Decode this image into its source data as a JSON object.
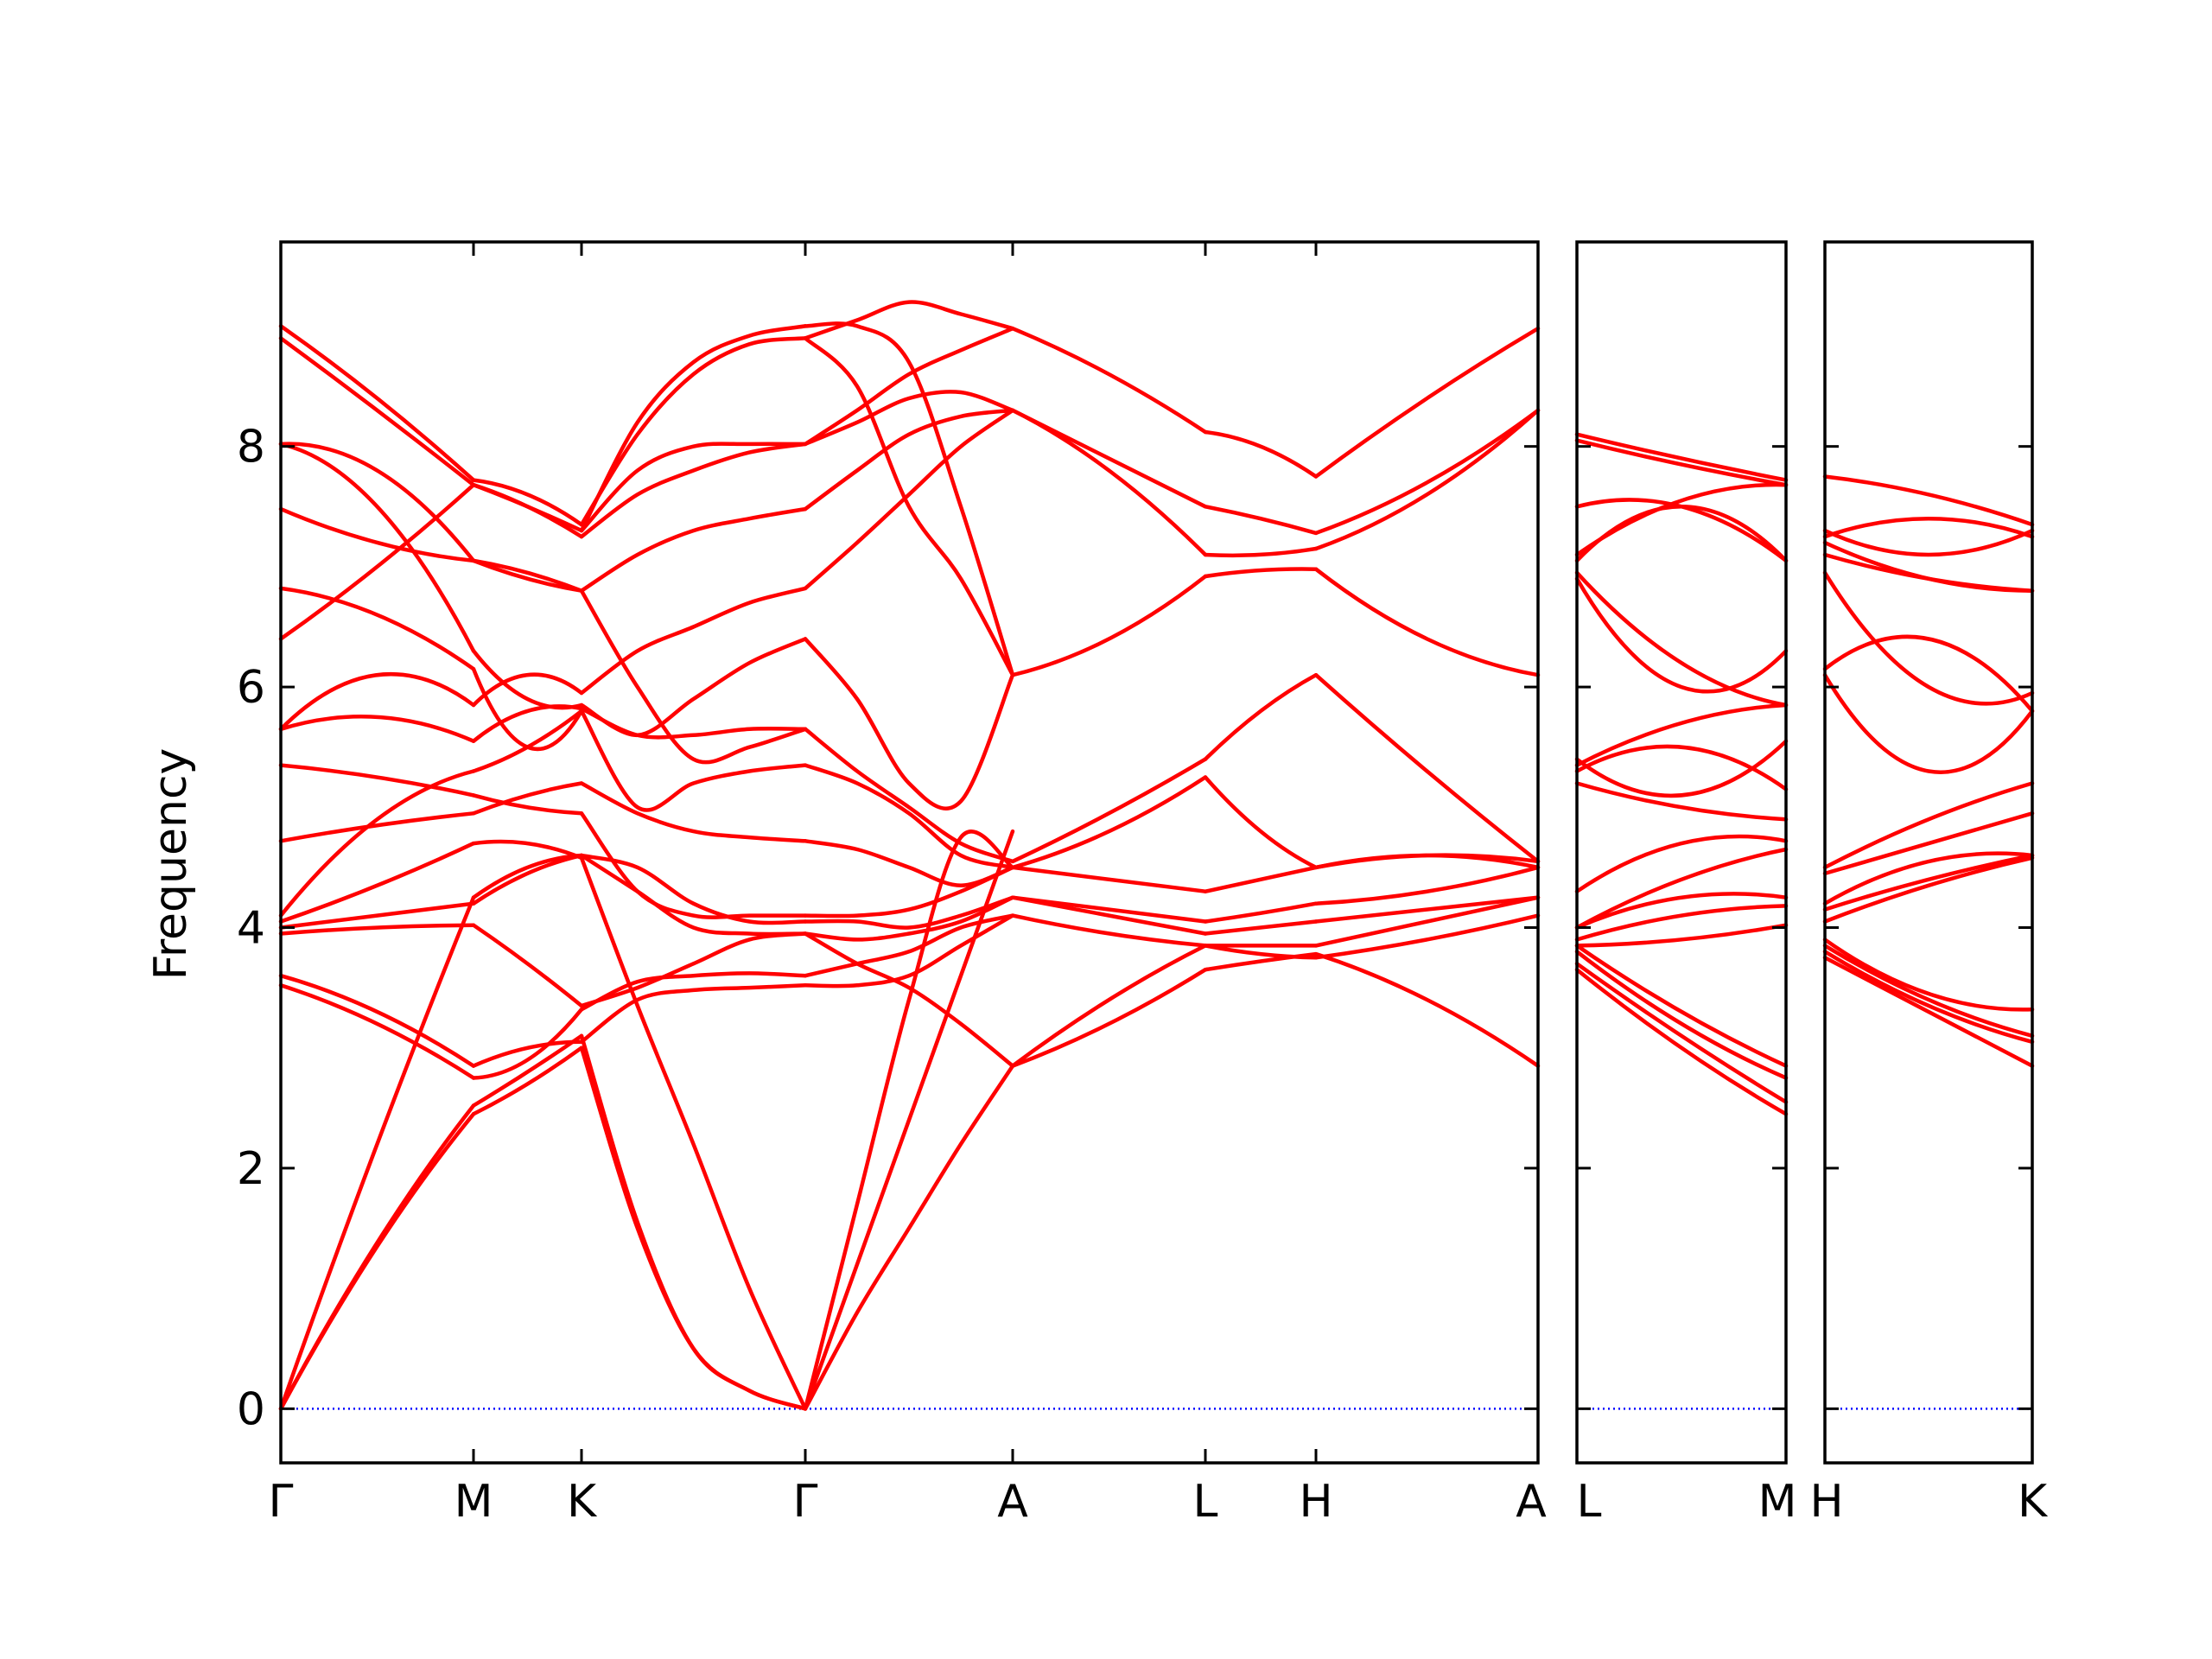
{
  "chart_data": {
    "type": "line",
    "title": "",
    "xlabel": "",
    "ylabel": "Frequency",
    "ylim": [
      -0.45,
      9.7
    ],
    "yticks": [
      0,
      2,
      4,
      6,
      8
    ],
    "grid": false,
    "legend": "none",
    "colors": {
      "bands": "#ff0000",
      "zero_line": "#0000ff",
      "frame": "#000000"
    },
    "panels": [
      {
        "labels": [
          "Γ",
          "M",
          "K",
          "Γ",
          "A",
          "L",
          "H",
          "A"
        ],
        "segments": [
          {
            "from": "Γ",
            "to": "M",
            "x": [
              0,
              0.5,
              1
            ],
            "bands": [
              [
                0,
                1.35,
                2.45
              ],
              [
                0,
                1.38,
                2.52
              ],
              [
                0,
                2.2,
                4.25
              ],
              [
                3.52,
                3.2,
                2.75
              ],
              [
                3.6,
                3.3,
                2.85
              ],
              [
                3.95,
                4.0,
                4.02
              ],
              [
                4.0,
                4.1,
                4.2
              ],
              [
                4.05,
                4.35,
                4.7
              ],
              [
                4.1,
                4.9,
                5.3
              ],
              [
                4.72,
                4.85,
                4.95
              ],
              [
                5.35,
                5.25,
                5.1
              ],
              [
                5.65,
                5.75,
                5.55
              ],
              [
                5.65,
                6.1,
                5.85
              ],
              [
                6.4,
                7.0,
                7.68
              ],
              [
                6.82,
                6.6,
                6.15
              ],
              [
                7.48,
                7.2,
                7.05
              ],
              [
                8.02,
                7.5,
                6.3
              ],
              [
                8.02,
                7.8,
                7.05
              ],
              [
                8.9,
                8.3,
                7.68
              ],
              [
                9.0,
                8.4,
                7.72
              ]
            ]
          },
          {
            "from": "M",
            "to": "K",
            "x": [
              0,
              0.5,
              1
            ],
            "bands": [
              [
                2.45,
                2.7,
                3.0
              ],
              [
                2.52,
                2.8,
                3.1
              ],
              [
                2.75,
                2.9,
                3.32
              ],
              [
                2.85,
                3.0,
                3.05
              ],
              [
                4.02,
                3.7,
                3.35
              ],
              [
                4.2,
                4.45,
                4.6
              ],
              [
                4.25,
                4.5,
                4.6
              ],
              [
                4.7,
                4.7,
                4.58
              ],
              [
                4.95,
                5.1,
                5.2
              ],
              [
                5.1,
                5.0,
                4.95
              ],
              [
                5.3,
                5.5,
                5.8
              ],
              [
                5.55,
                5.8,
                5.82
              ],
              [
                5.85,
                6.1,
                5.95
              ],
              [
                6.15,
                5.5,
                5.8
              ],
              [
                6.3,
                5.9,
                5.85
              ],
              [
                7.05,
                6.9,
                6.8
              ],
              [
                7.05,
                6.95,
                6.8
              ],
              [
                7.68,
                7.5,
                7.25
              ],
              [
                7.68,
                7.5,
                7.3
              ],
              [
                7.72,
                7.6,
                7.35
              ]
            ]
          },
          {
            "from": "K",
            "to": "Γ",
            "x": [
              0,
              0.25,
              0.5,
              0.75,
              1
            ],
            "bands": [
              [
                3.0,
                1.5,
                0.5,
                0.15,
                0
              ],
              [
                3.1,
                1.55,
                0.5,
                0.15,
                0
              ],
              [
                4.58,
                3.35,
                2.2,
                1.0,
                0
              ],
              [
                3.05,
                3.4,
                3.48,
                3.5,
                3.52
              ],
              [
                3.32,
                3.55,
                3.6,
                3.62,
                3.6
              ],
              [
                3.35,
                3.5,
                3.7,
                3.9,
                3.95
              ],
              [
                4.6,
                4.3,
                4.0,
                3.95,
                3.95
              ],
              [
                4.6,
                4.5,
                4.2,
                4.05,
                4.05
              ],
              [
                4.95,
                4.3,
                4.1,
                4.1,
                4.1
              ],
              [
                5.2,
                4.95,
                4.8,
                4.75,
                4.72
              ],
              [
                5.8,
                5.0,
                5.2,
                5.3,
                5.35
              ],
              [
                5.82,
                5.6,
                5.6,
                5.65,
                5.65
              ],
              [
                5.85,
                5.6,
                5.9,
                6.2,
                6.4
              ],
              [
                5.95,
                6.3,
                6.5,
                6.7,
                6.82
              ],
              [
                6.8,
                6.0,
                5.4,
                5.5,
                5.65
              ],
              [
                6.8,
                7.1,
                7.3,
                7.4,
                7.48
              ],
              [
                7.25,
                7.6,
                7.8,
                7.95,
                8.02
              ],
              [
                7.3,
                7.8,
                8.0,
                8.02,
                8.02
              ],
              [
                7.35,
                8.1,
                8.6,
                8.85,
                8.9
              ],
              [
                7.3,
                8.2,
                8.7,
                8.92,
                9.0
              ]
            ]
          },
          {
            "from": "Γ",
            "to": "A",
            "x": [
              0,
              0.25,
              0.5,
              0.75,
              1
            ],
            "bands": [
              [
                0,
                0.8,
                1.5,
                2.2,
                2.85
              ],
              [
                0,
                1.2,
                2.4,
                3.6,
                4.8
              ],
              [
                0,
                1.7,
                3.4,
                4.75,
                4.5
              ],
              [
                3.52,
                3.52,
                3.6,
                3.85,
                4.1
              ],
              [
                3.6,
                3.7,
                3.8,
                4.0,
                4.1
              ],
              [
                3.95,
                3.7,
                3.5,
                3.2,
                2.85
              ],
              [
                3.95,
                3.9,
                3.95,
                4.05,
                4.25
              ],
              [
                4.05,
                4.05,
                4.0,
                4.1,
                4.25
              ],
              [
                4.1,
                4.1,
                4.15,
                4.3,
                4.5
              ],
              [
                4.72,
                4.65,
                4.5,
                4.35,
                4.5
              ],
              [
                5.35,
                5.2,
                4.95,
                4.6,
                4.5
              ],
              [
                5.65,
                5.3,
                5.0,
                4.7,
                4.55
              ],
              [
                6.4,
                5.9,
                5.2,
                5.05,
                6.1
              ],
              [
                6.82,
                7.2,
                7.6,
                8.0,
                8.3
              ],
              [
                8.9,
                8.5,
                7.5,
                6.9,
                6.1
              ],
              [
                7.48,
                7.8,
                8.1,
                8.25,
                8.3
              ],
              [
                8.02,
                8.2,
                8.4,
                8.45,
                8.3
              ],
              [
                8.02,
                8.3,
                8.6,
                8.8,
                8.98
              ],
              [
                8.9,
                9.05,
                9.2,
                9.1,
                8.98
              ],
              [
                9.0,
                9.0,
                8.7,
                7.5,
                6.1
              ]
            ]
          },
          {
            "from": "A",
            "to": "L",
            "x": [
              0,
              0.5,
              1
            ],
            "bands": [
              [
                2.85,
                3.2,
                3.65
              ],
              [
                2.85,
                3.4,
                3.85
              ],
              [
                4.1,
                3.95,
                3.85
              ],
              [
                4.25,
                4.1,
                3.95
              ],
              [
                4.25,
                4.15,
                4.05
              ],
              [
                4.5,
                4.4,
                4.3
              ],
              [
                4.5,
                4.8,
                5.25
              ],
              [
                4.55,
                4.95,
                5.4
              ],
              [
                6.1,
                6.4,
                6.92
              ],
              [
                8.3,
                7.8,
                7.1
              ],
              [
                8.3,
                7.9,
                7.5
              ],
              [
                8.98,
                8.6,
                8.12
              ]
            ]
          },
          {
            "from": "L",
            "to": "H",
            "x": [
              0,
              0.5,
              1
            ],
            "bands": [
              [
                3.65,
                3.72,
                3.78
              ],
              [
                3.85,
                3.78,
                3.75
              ],
              [
                3.85,
                3.85,
                3.85
              ],
              [
                3.95,
                4.0,
                4.05
              ],
              [
                4.05,
                4.12,
                4.2
              ],
              [
                4.3,
                4.4,
                4.5
              ],
              [
                5.25,
                4.8,
                4.5
              ],
              [
                5.4,
                5.8,
                6.1
              ],
              [
                6.92,
                6.97,
                6.98
              ],
              [
                7.1,
                7.1,
                7.15
              ],
              [
                7.5,
                7.4,
                7.28
              ],
              [
                8.12,
                8.0,
                7.75
              ]
            ]
          },
          {
            "from": "H",
            "to": "A",
            "x": [
              0,
              0.5,
              1
            ],
            "bands": [
              [
                3.78,
                3.4,
                2.85
              ],
              [
                3.75,
                3.9,
                4.1
              ],
              [
                3.85,
                4.05,
                4.25
              ],
              [
                4.05,
                4.15,
                4.25
              ],
              [
                4.2,
                4.3,
                4.5
              ],
              [
                4.5,
                4.6,
                4.55
              ],
              [
                4.5,
                4.6,
                4.5
              ],
              [
                6.1,
                5.3,
                4.55
              ],
              [
                6.98,
                6.4,
                6.1
              ],
              [
                7.15,
                7.6,
                8.3
              ],
              [
                7.28,
                7.7,
                8.3
              ],
              [
                7.75,
                8.4,
                8.98
              ]
            ]
          }
        ]
      },
      {
        "labels": [
          "L",
          "M"
        ],
        "segments": [
          {
            "from": "L",
            "to": "M",
            "x": [
              0,
              0.5,
              1
            ],
            "bands": [
              [
                3.65,
                3.0,
                2.45
              ],
              [
                3.7,
                3.1,
                2.55
              ],
              [
                3.8,
                3.2,
                2.75
              ],
              [
                3.85,
                3.3,
                2.85
              ],
              [
                3.85,
                3.9,
                4.02
              ],
              [
                3.9,
                4.1,
                4.18
              ],
              [
                4.0,
                4.25,
                4.25
              ],
              [
                4.0,
                4.4,
                4.65
              ],
              [
                4.3,
                4.7,
                4.72
              ],
              [
                5.2,
                5.0,
                4.9
              ],
              [
                5.3,
                5.5,
                5.15
              ],
              [
                5.4,
                5.1,
                5.55
              ],
              [
                5.35,
                5.7,
                5.85
              ],
              [
                6.9,
                6.0,
                6.3
              ],
              [
                6.95,
                6.2,
                5.85
              ],
              [
                7.05,
                7.5,
                7.05
              ],
              [
                7.1,
                7.55,
                7.68
              ],
              [
                7.5,
                7.5,
                7.05
              ],
              [
                8.05,
                7.85,
                7.68
              ],
              [
                8.1,
                7.9,
                7.72
              ]
            ]
          }
        ]
      },
      {
        "labels": [
          "H",
          "K"
        ],
        "segments": [
          {
            "from": "H",
            "to": "K",
            "x": [
              0,
              0.5,
              1
            ],
            "bands": [
              [
                3.75,
                3.3,
                2.85
              ],
              [
                3.8,
                3.35,
                3.05
              ],
              [
                3.85,
                3.4,
                3.1
              ],
              [
                3.9,
                3.45,
                3.32
              ],
              [
                4.05,
                4.35,
                4.58
              ],
              [
                4.15,
                4.4,
                4.6
              ],
              [
                4.2,
                4.55,
                4.6
              ],
              [
                4.45,
                4.7,
                4.95
              ],
              [
                4.5,
                4.9,
                5.2
              ],
              [
                6.1,
                5.3,
                5.8
              ],
              [
                6.15,
                6.4,
                5.8
              ],
              [
                6.95,
                6.0,
                5.95
              ],
              [
                7.1,
                6.9,
                6.8
              ],
              [
                7.2,
                6.9,
                6.8
              ],
              [
                7.25,
                7.4,
                7.25
              ],
              [
                7.3,
                7.1,
                7.3
              ],
              [
                7.75,
                7.6,
                7.35
              ]
            ]
          }
        ]
      }
    ]
  }
}
